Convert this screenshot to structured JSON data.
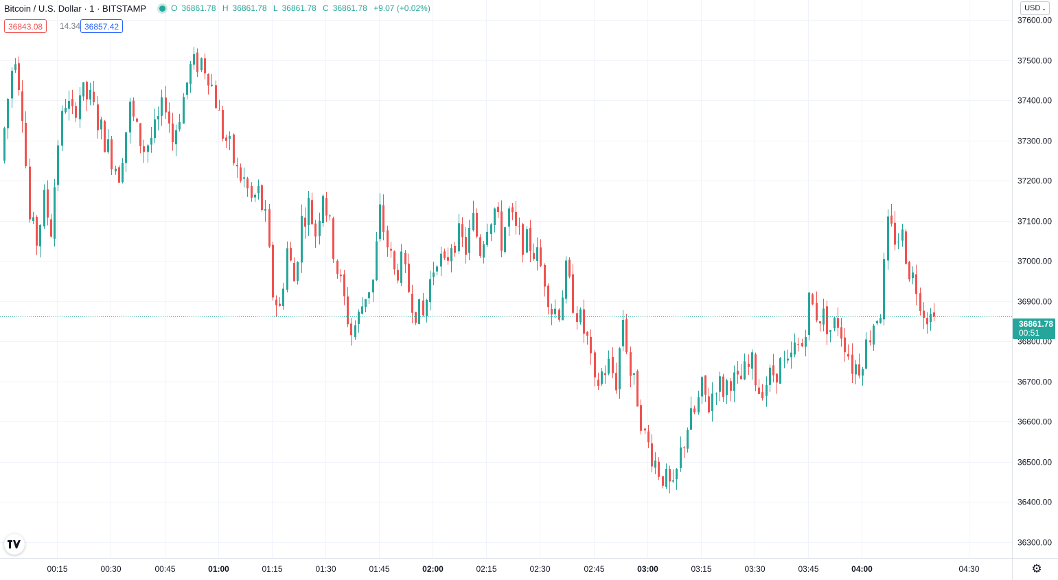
{
  "legend": {
    "symbol": "Bitcoin / U.S. Dollar · 1 · BITSTAMP",
    "open": "36861.78",
    "high": "36861.78",
    "low": "36861.78",
    "close": "36861.78",
    "change": "+9.07 (+0.02%)",
    "o_label": "O",
    "h_label": "H",
    "l_label": "L",
    "c_label": "C"
  },
  "quote": {
    "bid": "36843.08",
    "spread": "14.34",
    "ask": "36857.42"
  },
  "currency": {
    "label": "USD"
  },
  "last_price": {
    "price": "36861.78",
    "countdown": "00:51"
  },
  "colors": {
    "up": "#26a69a",
    "down": "#ef5350",
    "grid": "#f0f3fa",
    "text": "#131722"
  },
  "icons": {
    "logo": "tradingview-logo-icon",
    "settings": "gear-icon",
    "dropdown": "chevron-down-icon",
    "status": "market-open-dot-icon"
  },
  "chart_data": {
    "type": "candlestick",
    "interval": "1 minute",
    "ylim": [
      36260,
      37650
    ],
    "y_ticks": [
      "37600.00",
      "37500.00",
      "37400.00",
      "37300.00",
      "37200.00",
      "37100.00",
      "37000.00",
      "36900.00",
      "36800.00",
      "36700.00",
      "36600.00",
      "36500.00",
      "36400.00",
      "36300.00"
    ],
    "x_ticks": [
      {
        "label": "00:15",
        "bold": false
      },
      {
        "label": "00:30",
        "bold": false
      },
      {
        "label": "00:45",
        "bold": false
      },
      {
        "label": "01:00",
        "bold": true
      },
      {
        "label": "01:15",
        "bold": false
      },
      {
        "label": "01:30",
        "bold": false
      },
      {
        "label": "01:45",
        "bold": false
      },
      {
        "label": "02:00",
        "bold": true
      },
      {
        "label": "02:15",
        "bold": false
      },
      {
        "label": "02:30",
        "bold": false
      },
      {
        "label": "02:45",
        "bold": false
      },
      {
        "label": "03:00",
        "bold": true
      },
      {
        "label": "03:15",
        "bold": false
      },
      {
        "label": "03:30",
        "bold": false
      },
      {
        "label": "03:45",
        "bold": false
      },
      {
        "label": "04:00",
        "bold": true
      },
      {
        "label": "04:30",
        "bold": false
      }
    ],
    "x_tick_minutes": [
      15,
      30,
      45,
      60,
      75,
      90,
      105,
      120,
      135,
      150,
      165,
      180,
      195,
      210,
      225,
      240,
      270
    ],
    "anchors": [
      [
        0,
        37250
      ],
      [
        3,
        37480
      ],
      [
        4,
        37520
      ],
      [
        6,
        37380
      ],
      [
        8,
        37100
      ],
      [
        10,
        37050
      ],
      [
        12,
        37150
      ],
      [
        14,
        37080
      ],
      [
        16,
        37300
      ],
      [
        18,
        37400
      ],
      [
        20,
        37360
      ],
      [
        22,
        37420
      ],
      [
        25,
        37400
      ],
      [
        27,
        37350
      ],
      [
        30,
        37280
      ],
      [
        33,
        37220
      ],
      [
        36,
        37380
      ],
      [
        38,
        37320
      ],
      [
        40,
        37280
      ],
      [
        43,
        37320
      ],
      [
        46,
        37400
      ],
      [
        48,
        37300
      ],
      [
        50,
        37370
      ],
      [
        53,
        37480
      ],
      [
        56,
        37500
      ],
      [
        58,
        37470
      ],
      [
        60,
        37400
      ],
      [
        62,
        37320
      ],
      [
        64,
        37280
      ],
      [
        66,
        37220
      ],
      [
        68,
        37200
      ],
      [
        70,
        37150
      ],
      [
        72,
        37170
      ],
      [
        74,
        37100
      ],
      [
        76,
        36920
      ],
      [
        78,
        36880
      ],
      [
        80,
        37030
      ],
      [
        82,
        36950
      ],
      [
        84,
        37100
      ],
      [
        86,
        37140
      ],
      [
        88,
        37070
      ],
      [
        90,
        37180
      ],
      [
        92,
        37080
      ],
      [
        94,
        36980
      ],
      [
        96,
        36900
      ],
      [
        98,
        36820
      ],
      [
        100,
        36860
      ],
      [
        102,
        36920
      ],
      [
        104,
        36950
      ],
      [
        106,
        37120
      ],
      [
        108,
        37040
      ],
      [
        110,
        36970
      ],
      [
        112,
        36990
      ],
      [
        114,
        36930
      ],
      [
        116,
        36880
      ],
      [
        118,
        36860
      ],
      [
        120,
        36950
      ],
      [
        122,
        37020
      ],
      [
        124,
        36980
      ],
      [
        126,
        37050
      ],
      [
        128,
        37060
      ],
      [
        130,
        37030
      ],
      [
        132,
        37100
      ],
      [
        134,
        37030
      ],
      [
        136,
        37100
      ],
      [
        138,
        37130
      ],
      [
        140,
        37050
      ],
      [
        142,
        37120
      ],
      [
        144,
        37070
      ],
      [
        146,
        37050
      ],
      [
        148,
        37040
      ],
      [
        150,
        37010
      ],
      [
        152,
        36960
      ],
      [
        154,
        36880
      ],
      [
        156,
        36880
      ],
      [
        158,
        36970
      ],
      [
        160,
        36900
      ],
      [
        162,
        36850
      ],
      [
        164,
        36800
      ],
      [
        166,
        36680
      ],
      [
        168,
        36720
      ],
      [
        170,
        36740
      ],
      [
        172,
        36700
      ],
      [
        174,
        36860
      ],
      [
        176,
        36720
      ],
      [
        178,
        36660
      ],
      [
        180,
        36560
      ],
      [
        182,
        36520
      ],
      [
        184,
        36480
      ],
      [
        186,
        36450
      ],
      [
        188,
        36420
      ],
      [
        190,
        36520
      ],
      [
        192,
        36590
      ],
      [
        194,
        36620
      ],
      [
        196,
        36680
      ],
      [
        198,
        36640
      ],
      [
        200,
        36700
      ],
      [
        202,
        36680
      ],
      [
        204,
        36710
      ],
      [
        206,
        36690
      ],
      [
        208,
        36720
      ],
      [
        210,
        36740
      ],
      [
        212,
        36680
      ],
      [
        214,
        36700
      ],
      [
        216,
        36720
      ],
      [
        218,
        36740
      ],
      [
        220,
        36730
      ],
      [
        222,
        36780
      ],
      [
        224,
        36790
      ],
      [
        226,
        36900
      ],
      [
        228,
        36870
      ],
      [
        230,
        36860
      ],
      [
        232,
        36830
      ],
      [
        234,
        36850
      ],
      [
        236,
        36800
      ],
      [
        238,
        36740
      ],
      [
        240,
        36740
      ],
      [
        242,
        36790
      ],
      [
        244,
        36850
      ],
      [
        246,
        36880
      ],
      [
        248,
        37080
      ],
      [
        250,
        37060
      ],
      [
        252,
        37060
      ],
      [
        254,
        36980
      ],
      [
        256,
        36940
      ],
      [
        258,
        36880
      ],
      [
        260,
        36860
      ]
    ],
    "x_minute_range": [
      -1,
      282
    ],
    "last_price": 36861.78
  }
}
